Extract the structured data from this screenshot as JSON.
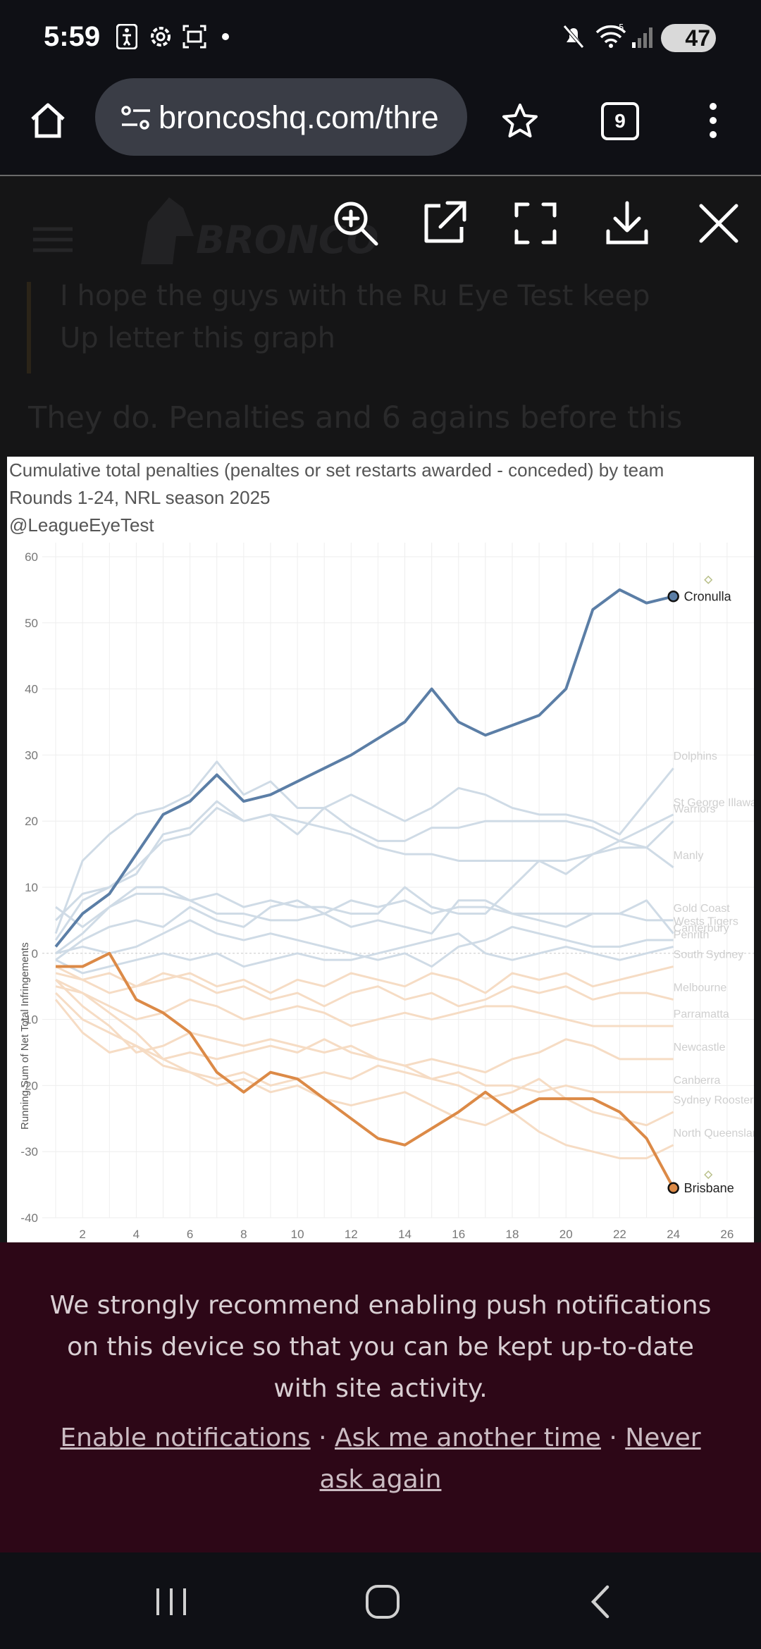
{
  "status_bar": {
    "time": "5:59",
    "battery": "47",
    "wifi_signal": "5",
    "icons": [
      "accessibility-icon",
      "settings-icon",
      "screenshot-icon",
      "dot-icon",
      "mute-icon",
      "wifi-icon",
      "signal-icon",
      "battery-icon"
    ]
  },
  "browser": {
    "url": "broncoshq.com/thre",
    "tab_count": "9",
    "icons": [
      "home-icon",
      "site-settings-icon",
      "star-icon",
      "tabs-icon",
      "more-icon"
    ]
  },
  "page_background": {
    "logo_text": "BRONCO",
    "quote_line1": "I hope the guys with the Ru Eye Test keep",
    "quote_line2": "Up letter this graph",
    "reply_text": "They do. Penalties and 6 agains before this"
  },
  "viewer_toolbar": {
    "icons": [
      "zoom-in-icon",
      "open-external-icon",
      "fullscreen-icon",
      "download-icon",
      "close-icon"
    ]
  },
  "chart_data": {
    "type": "line",
    "title": "Cumulative total penalties (penaltes or set restarts awarded - conceded) by team",
    "subtitle": "Rounds 1-24, NRL season 2025",
    "credit": "@LeagueEyeTest",
    "ylabel": "Running Sum of Net Total Infringements",
    "xlabel": "",
    "xlim": [
      0.5,
      27
    ],
    "ylim": [
      -40,
      60
    ],
    "x_ticks": [
      "2",
      "4",
      "6",
      "8",
      "10",
      "12",
      "14",
      "16",
      "18",
      "20",
      "22",
      "24",
      "26"
    ],
    "y_ticks": [
      "60",
      "50",
      "40",
      "30",
      "20",
      "10",
      "0",
      "-10",
      "-20",
      "-30",
      "-40"
    ],
    "grid": true,
    "x": [
      1,
      2,
      3,
      4,
      5,
      6,
      7,
      8,
      9,
      10,
      11,
      12,
      13,
      14,
      15,
      16,
      17,
      18,
      19,
      20,
      21,
      22,
      23,
      24
    ],
    "series": [
      {
        "name": "Cronulla",
        "highlight": true,
        "color": "#5b7ea6",
        "values": [
          1,
          6,
          9,
          15,
          21,
          23,
          27,
          23,
          24,
          26,
          28,
          30,
          32.5,
          35,
          40,
          35,
          33,
          34.5,
          36,
          40,
          52,
          55,
          53,
          54
        ]
      },
      {
        "name": "Brisbane",
        "highlight": true,
        "color": "#dc8a47",
        "values": [
          -2,
          -2,
          0,
          -7,
          -9,
          -12,
          -18,
          -21,
          -18,
          -19,
          -22,
          -25,
          -28,
          -29,
          -26.5,
          -24,
          -21,
          -24,
          -22,
          -22,
          -22,
          -24,
          -28,
          -35.5
        ]
      },
      {
        "name": "Dolphins",
        "values": [
          3,
          14,
          18,
          21,
          22,
          24,
          29,
          24,
          26,
          22,
          22,
          24,
          22,
          20,
          22,
          25,
          24,
          22,
          21,
          21,
          20,
          18,
          23,
          28
        ]
      },
      {
        "name": "St George Illawarra",
        "values": [
          5,
          9,
          10,
          12,
          18,
          19,
          23,
          20,
          21,
          18,
          22,
          19,
          17,
          17,
          19,
          19,
          20,
          20,
          20,
          20,
          19,
          17,
          19,
          21
        ]
      },
      {
        "name": "Warriors",
        "values": [
          2,
          8,
          10,
          13,
          17,
          18,
          22,
          20,
          21,
          20,
          19,
          18,
          16,
          15,
          15,
          14,
          14,
          14,
          14,
          14,
          15,
          17,
          16,
          20
        ]
      },
      {
        "name": "Manly",
        "values": [
          0,
          3,
          7,
          10,
          10,
          8,
          9,
          7,
          8,
          7,
          7,
          6,
          6,
          10,
          7,
          6,
          6,
          10,
          14,
          12,
          15,
          16,
          16,
          13
        ]
      },
      {
        "name": "Gold Coast",
        "values": [
          7,
          4,
          7,
          9,
          9,
          8,
          6,
          6,
          5,
          5,
          6,
          4,
          5,
          4,
          3,
          8,
          8,
          6,
          6,
          6,
          6,
          6,
          5,
          5
        ]
      },
      {
        "name": "Wests Tigers",
        "values": [
          -1,
          2,
          4,
          5,
          4,
          7,
          5,
          4,
          7,
          8,
          6,
          8,
          7,
          8,
          6,
          7,
          7,
          6,
          5,
          4,
          6,
          6,
          8,
          3
        ]
      },
      {
        "name": "Canterbury",
        "values": [
          0,
          1,
          0,
          1,
          3,
          5,
          3,
          2,
          3,
          2,
          1,
          0,
          -1,
          0,
          -2,
          1,
          2,
          4,
          3,
          2,
          1,
          1,
          2,
          2
        ]
      },
      {
        "name": "Penrith",
        "values": [
          -1,
          -3,
          -2,
          -1,
          0,
          -1,
          0,
          -2,
          -1,
          0,
          -1,
          -1,
          0,
          1,
          2,
          3,
          0,
          -1,
          0,
          1,
          0,
          -1,
          0,
          1
        ]
      },
      {
        "name": "South Sydney",
        "values": [
          -3,
          -4,
          -3,
          -5,
          -4,
          -3,
          -5,
          -4,
          -6,
          -4,
          -5,
          -3,
          -4,
          -5,
          -3,
          -4,
          -6,
          -3,
          -4,
          -3,
          -5,
          -4,
          -3,
          -2
        ]
      },
      {
        "name": "Melbourne",
        "values": [
          -2,
          -4,
          -6,
          -5,
          -3,
          -4,
          -6,
          -5,
          -7,
          -6,
          -8,
          -6,
          -5,
          -7,
          -6,
          -8,
          -7,
          -5,
          -6,
          -5,
          -7,
          -6,
          -6,
          -7
        ]
      },
      {
        "name": "Parramatta",
        "values": [
          -4,
          -6,
          -8,
          -10,
          -9,
          -7,
          -8,
          -10,
          -9,
          -8,
          -9,
          -11,
          -10,
          -9,
          -10,
          -9,
          -8,
          -8,
          -9,
          -10,
          -11,
          -11,
          -11,
          -11
        ]
      },
      {
        "name": "Newcastle",
        "values": [
          -4,
          -8,
          -11,
          -15,
          -14,
          -12,
          -13,
          -14,
          -13,
          -14,
          -15,
          -14,
          -16,
          -17,
          -16,
          -17,
          -18,
          -16,
          -15,
          -13,
          -14,
          -16,
          -16,
          -16
        ]
      },
      {
        "name": "Canberra",
        "values": [
          -5,
          -6,
          -9,
          -12,
          -16,
          -15,
          -16,
          -15,
          -14,
          -15,
          -13,
          -15,
          -16,
          -17,
          -19,
          -18,
          -20,
          -20,
          -21,
          -20,
          -21,
          -21,
          -21,
          -21
        ]
      },
      {
        "name": "Sydney Roosters",
        "values": [
          -6,
          -10,
          -12,
          -14,
          -17,
          -18,
          -19,
          -18,
          -20,
          -19,
          -18,
          -19,
          -17,
          -18,
          -19,
          -20,
          -22,
          -21,
          -19,
          -22,
          -24,
          -25,
          -26,
          -24
        ]
      },
      {
        "name": "North Queensland",
        "values": [
          -7,
          -12,
          -15,
          -14,
          -16,
          -18,
          -20,
          -19,
          -21,
          -20,
          -22,
          -23,
          -22,
          -21,
          -23,
          -25,
          -26,
          -24,
          -27,
          -29,
          -30,
          -31,
          -31,
          -29
        ]
      }
    ],
    "annotations": [
      {
        "label": "diamond-marker-top",
        "x": 25.3,
        "y": 56.5
      },
      {
        "label": "diamond-marker-bottom",
        "x": 25.3,
        "y": -33.5
      }
    ]
  },
  "notification": {
    "message": "We strongly recommend enabling push notifications on this device so that you can be kept up-to-date with site activity.",
    "enable_label": "Enable notifications",
    "later_label": "Ask me another time",
    "never_label": "Never ask again",
    "separator": " · "
  },
  "nav_bar": {
    "icons": [
      "recent-apps-icon",
      "home-nav-icon",
      "back-icon"
    ]
  }
}
